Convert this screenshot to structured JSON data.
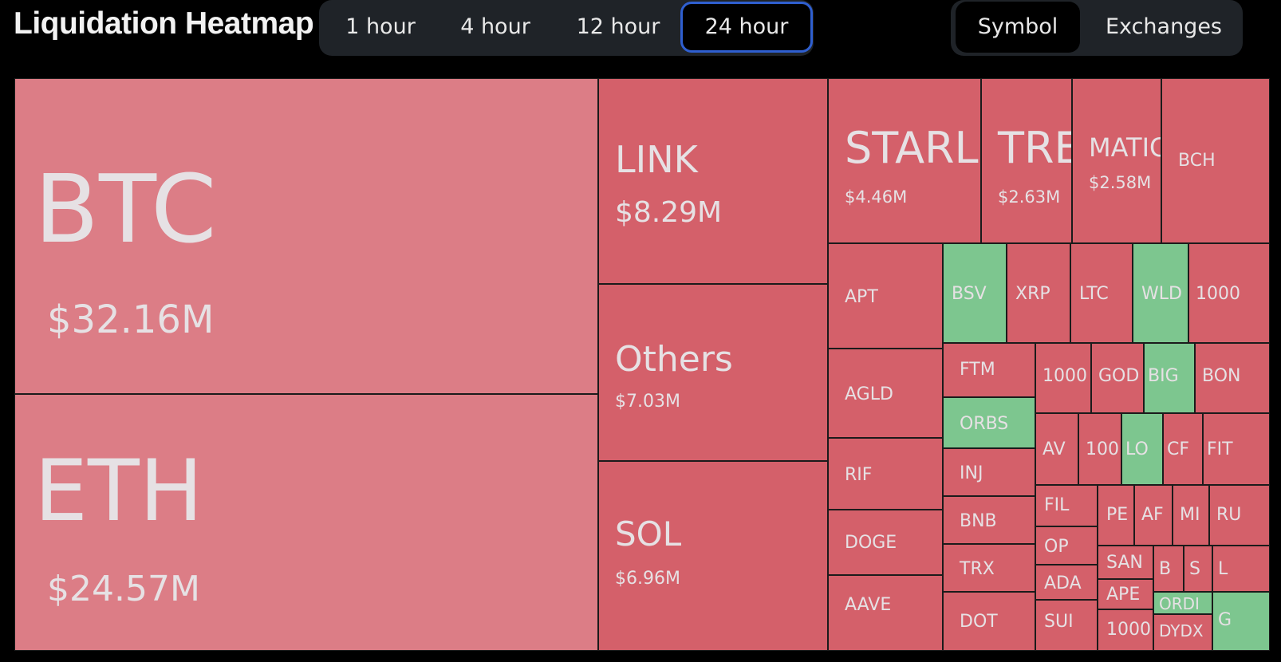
{
  "header": {
    "title": "Liquidation Heatmap",
    "time_tabs": [
      "1 hour",
      "4 hour",
      "12 hour",
      "24 hour"
    ],
    "active_time_tab": "24 hour",
    "mode_tabs": [
      "Symbol",
      "Exchanges"
    ],
    "active_mode_tab": "Symbol"
  },
  "colors": {
    "long": "#d4606a",
    "major": "#dc7d86",
    "short": "#7dc68f",
    "background": "#000000"
  },
  "chart_data": {
    "type": "heatmap",
    "subtype": "treemap",
    "cells": [
      {
        "symbol": "BTC",
        "label": "$32.16M",
        "value": 32.16,
        "color": "major"
      },
      {
        "symbol": "ETH",
        "label": "$24.57M",
        "value": 24.57,
        "color": "major"
      },
      {
        "symbol": "LINK",
        "label": "$8.29M",
        "value": 8.29,
        "color": "long"
      },
      {
        "symbol": "Others",
        "label": "$7.03M",
        "value": 7.03,
        "color": "long"
      },
      {
        "symbol": "SOL",
        "label": "$6.96M",
        "value": 6.96,
        "color": "long"
      },
      {
        "symbol": "STARL",
        "label": "$4.46M",
        "value": 4.46,
        "color": "long"
      },
      {
        "symbol": "TRE",
        "label": "$2.63M",
        "value": 2.63,
        "color": "long"
      },
      {
        "symbol": "MATIC",
        "label": "$2.58M",
        "value": 2.58,
        "color": "long"
      },
      {
        "symbol": "BCH",
        "color": "long"
      },
      {
        "symbol": "APT",
        "color": "long"
      },
      {
        "symbol": "AGLD",
        "color": "long"
      },
      {
        "symbol": "RIF",
        "color": "long"
      },
      {
        "symbol": "DOGE",
        "color": "long"
      },
      {
        "symbol": "AAVE",
        "color": "long"
      },
      {
        "symbol": "BSV",
        "color": "short"
      },
      {
        "symbol": "XRP",
        "color": "long"
      },
      {
        "symbol": "LTC",
        "color": "long"
      },
      {
        "symbol": "WLD",
        "color": "short"
      },
      {
        "symbol": "1000",
        "color": "long"
      },
      {
        "symbol": "FTM",
        "color": "long"
      },
      {
        "symbol": "ORBS",
        "color": "short"
      },
      {
        "symbol": "INJ",
        "color": "long"
      },
      {
        "symbol": "BNB",
        "color": "long"
      },
      {
        "symbol": "TRX",
        "color": "long"
      },
      {
        "symbol": "DOT",
        "color": "long"
      },
      {
        "symbol": "1000",
        "color": "long"
      },
      {
        "symbol": "GOD",
        "color": "long"
      },
      {
        "symbol": "BIG",
        "color": "short"
      },
      {
        "symbol": "BON",
        "color": "long"
      },
      {
        "symbol": "AV",
        "color": "long"
      },
      {
        "symbol": "100",
        "color": "long"
      },
      {
        "symbol": "LO",
        "color": "short"
      },
      {
        "symbol": "CF",
        "color": "long"
      },
      {
        "symbol": "FIT",
        "color": "long"
      },
      {
        "symbol": "FIL",
        "color": "long"
      },
      {
        "symbol": "PE",
        "color": "long"
      },
      {
        "symbol": "AF",
        "color": "long"
      },
      {
        "symbol": "MI",
        "color": "long"
      },
      {
        "symbol": "RU",
        "color": "long"
      },
      {
        "symbol": "OP",
        "color": "long"
      },
      {
        "symbol": "SAN",
        "color": "long"
      },
      {
        "symbol": "B",
        "color": "long"
      },
      {
        "symbol": "S",
        "color": "long"
      },
      {
        "symbol": "L",
        "color": "long"
      },
      {
        "symbol": "ADA",
        "color": "long"
      },
      {
        "symbol": "APE",
        "color": "long"
      },
      {
        "symbol": "ORDI",
        "color": "short"
      },
      {
        "symbol": "G",
        "color": "short"
      },
      {
        "symbol": "SUI",
        "color": "long"
      },
      {
        "symbol": "1000",
        "color": "long"
      },
      {
        "symbol": "DYDX",
        "color": "long"
      }
    ]
  }
}
